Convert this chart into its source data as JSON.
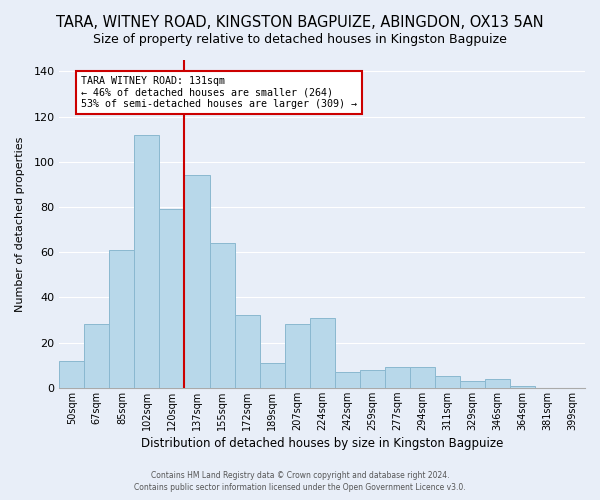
{
  "title": "TARA, WITNEY ROAD, KINGSTON BAGPUIZE, ABINGDON, OX13 5AN",
  "subtitle": "Size of property relative to detached houses in Kingston Bagpuize",
  "xlabel": "Distribution of detached houses by size in Kingston Bagpuize",
  "ylabel": "Number of detached properties",
  "bar_labels": [
    "50sqm",
    "67sqm",
    "85sqm",
    "102sqm",
    "120sqm",
    "137sqm",
    "155sqm",
    "172sqm",
    "189sqm",
    "207sqm",
    "224sqm",
    "242sqm",
    "259sqm",
    "277sqm",
    "294sqm",
    "311sqm",
    "329sqm",
    "346sqm",
    "364sqm",
    "381sqm",
    "399sqm"
  ],
  "bar_values": [
    12,
    28,
    61,
    112,
    79,
    94,
    64,
    32,
    11,
    28,
    31,
    7,
    8,
    9,
    9,
    5,
    3,
    4,
    1,
    0,
    0
  ],
  "bar_color": "#b8d8ea",
  "bar_edge_color": "#8ab8d0",
  "vline_x": 4.5,
  "vline_color": "#cc0000",
  "annotation_line1": "TARA WITNEY ROAD: 131sqm",
  "annotation_line2": "← 46% of detached houses are smaller (264)",
  "annotation_line3": "53% of semi-detached houses are larger (309) →",
  "annotation_box_color": "#ffffff",
  "annotation_box_edge": "#cc0000",
  "ylim": [
    0,
    145
  ],
  "yticks": [
    0,
    20,
    40,
    60,
    80,
    100,
    120,
    140
  ],
  "footer1": "Contains HM Land Registry data © Crown copyright and database right 2024.",
  "footer2": "Contains public sector information licensed under the Open Government Licence v3.0.",
  "background_color": "#e8eef8",
  "grid_color": "#ffffff",
  "title_fontsize": 10.5,
  "subtitle_fontsize": 9
}
